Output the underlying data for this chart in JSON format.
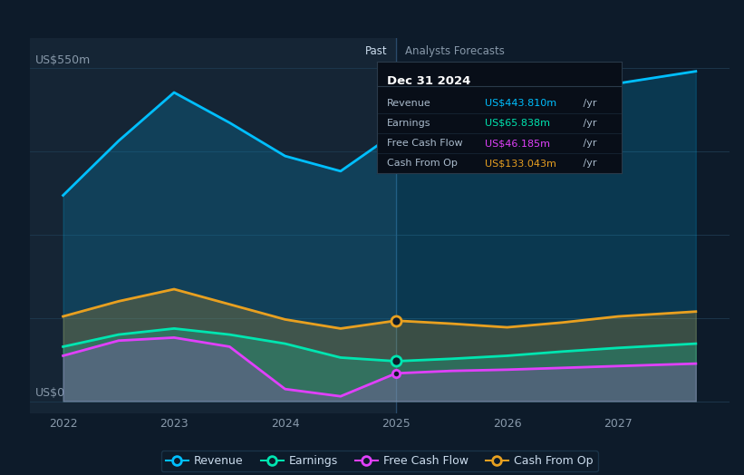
{
  "bg_color": "#0d1b2a",
  "past_bg_color": "#112233",
  "revenue_color": "#00bfff",
  "earnings_color": "#00e5b0",
  "fcf_color": "#e040fb",
  "cashop_color": "#e8a020",
  "ylabel_550": "US$550m",
  "ylabel_0": "US$0",
  "past_label": "Past",
  "forecast_label": "Analysts Forecasts",
  "divider_x": 2025,
  "x_ticks": [
    2022,
    2023,
    2024,
    2025,
    2026,
    2027
  ],
  "revenue_x": [
    2022,
    2022.5,
    2023,
    2023.5,
    2024,
    2024.5,
    2025,
    2025.5,
    2026,
    2026.5,
    2027,
    2027.7
  ],
  "revenue_y": [
    340,
    430,
    510,
    460,
    405,
    380,
    444,
    460,
    480,
    505,
    525,
    545
  ],
  "earnings_x": [
    2022,
    2022.5,
    2023,
    2023.5,
    2024,
    2024.5,
    2025,
    2025.5,
    2026,
    2026.5,
    2027,
    2027.7
  ],
  "earnings_y": [
    90,
    110,
    120,
    110,
    95,
    72,
    66,
    70,
    75,
    82,
    88,
    95
  ],
  "fcf_x": [
    2022,
    2022.5,
    2023,
    2023.5,
    2024,
    2024.5,
    2025,
    2025.5,
    2026,
    2026.5,
    2027,
    2027.7
  ],
  "fcf_y": [
    75,
    100,
    105,
    90,
    20,
    8,
    46,
    50,
    52,
    55,
    58,
    62
  ],
  "cashop_x": [
    2022,
    2022.5,
    2023,
    2023.5,
    2024,
    2024.5,
    2025,
    2025.5,
    2026,
    2026.5,
    2027,
    2027.7
  ],
  "cashop_y": [
    140,
    165,
    185,
    160,
    135,
    120,
    133,
    128,
    122,
    130,
    140,
    148
  ],
  "tooltip_title": "Dec 31 2024",
  "tooltip_rows": [
    {
      "label": "Revenue",
      "value": "US$443.810m",
      "unit": " /yr",
      "color": "#00bfff"
    },
    {
      "label": "Earnings",
      "value": "US$65.838m",
      "unit": " /yr",
      "color": "#00e5b0"
    },
    {
      "label": "Free Cash Flow",
      "value": "US$46.185m",
      "unit": " /yr",
      "color": "#e040fb"
    },
    {
      "label": "Cash From Op",
      "value": "US$133.043m",
      "unit": " /yr",
      "color": "#e8a020"
    }
  ],
  "legend_items": [
    {
      "label": "Revenue",
      "color": "#00bfff"
    },
    {
      "label": "Earnings",
      "color": "#00e5b0"
    },
    {
      "label": "Free Cash Flow",
      "color": "#e040fb"
    },
    {
      "label": "Cash From Op",
      "color": "#e8a020"
    }
  ],
  "xlim": [
    2021.7,
    2028.0
  ],
  "ylim": [
    -20,
    600
  ],
  "axis_fontsize": 9,
  "legend_fontsize": 9
}
